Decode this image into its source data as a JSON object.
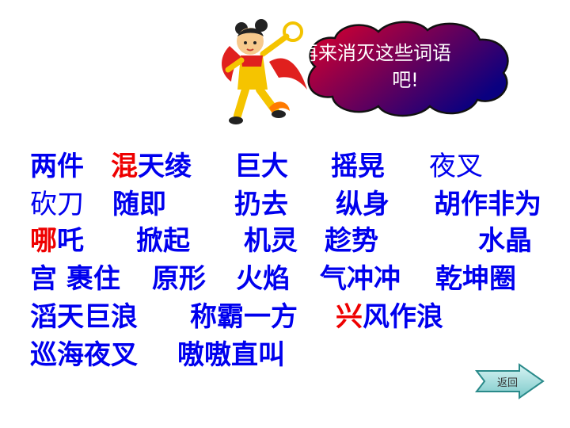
{
  "bubble": {
    "line1": "再来消灭这些词语",
    "line2": "吧!"
  },
  "words": {
    "w1": "两件",
    "w2_red": "混",
    "w2_rest": "天绫",
    "w3": "巨大",
    "w4": "摇晃",
    "w5": "夜叉",
    "w6": "砍刀",
    "w7": "随即",
    "w8": "扔去",
    "w9": "纵身",
    "w10": "胡作非为",
    "w11_red": "哪",
    "w11_rest": "吒",
    "w12": "掀起",
    "w13": "机灵",
    "w14": "趁势",
    "w15": "水晶",
    "w16": "宫 裹住",
    "w17": "原形",
    "w18": "火焰",
    "w19": "气冲冲",
    "w20": "乾坤圈",
    "w21": "滔天巨浪",
    "w22": "称霸一方",
    "w23_red": "兴",
    "w23_rest": "风作浪",
    "w24": "巡海夜叉",
    "w25": "嗷嗷直叫"
  },
  "nav": {
    "back_label": "返回"
  },
  "colors": {
    "word_blue": "#0000ee",
    "highlight_red": "#ee0000",
    "cloud_start": "#e0002a",
    "cloud_end": "#0a0080"
  },
  "icons": {
    "mascot": "nezha-mascot-icon",
    "back": "arrow-right-icon"
  }
}
